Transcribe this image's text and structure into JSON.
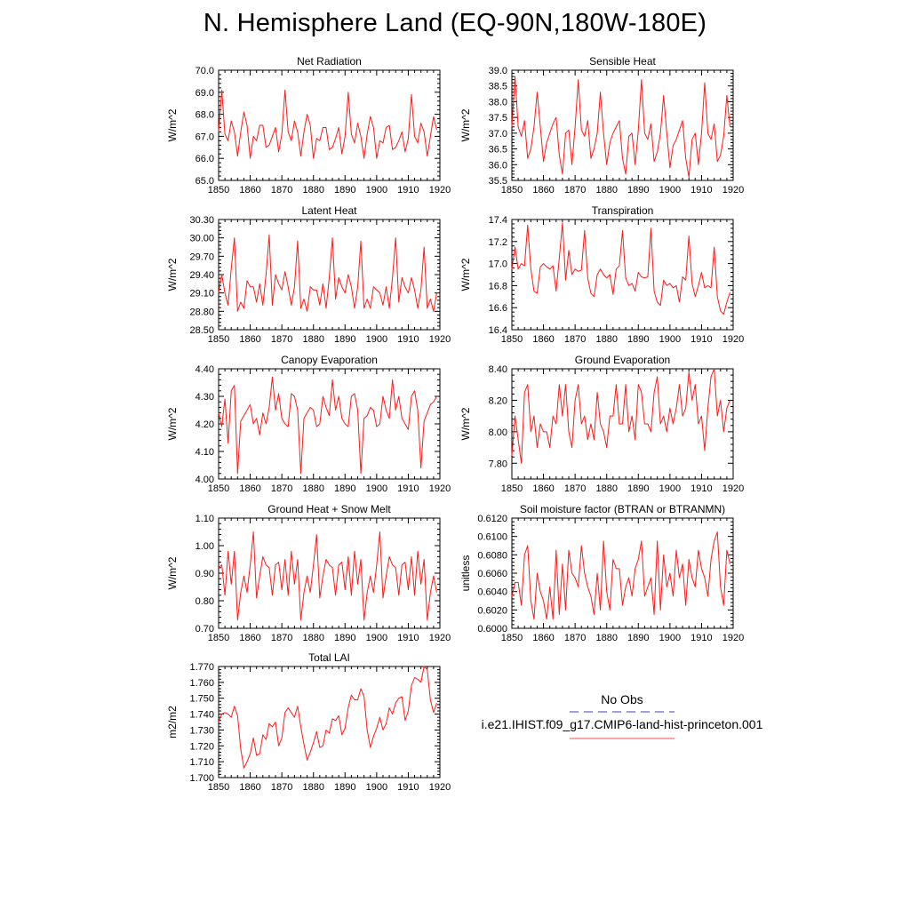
{
  "title": "N. Hemisphere Land (EQ-90N,180W-180E)",
  "legend": {
    "entries": [
      {
        "label": "No Obs",
        "color": "#3b3bc8",
        "style": "dashed"
      },
      {
        "label": "i.e21.IHIST.f09_g17.CMIP6-land-hist-princeton.001",
        "color": "#ff4a4a",
        "style": "solid"
      }
    ]
  },
  "chart_data": [
    {
      "type": "line",
      "title": "Net Radiation",
      "ylabel": "W/m^2",
      "xlabel": "",
      "xlim": [
        1850,
        1920
      ],
      "ylim": [
        65.0,
        70.0
      ],
      "xticks": [
        1850,
        1860,
        1870,
        1880,
        1890,
        1900,
        1910,
        1920
      ],
      "yticks": [
        65.0,
        66.0,
        67.0,
        68.0,
        69.0,
        70.0
      ],
      "ytick_labels": [
        "65.0",
        "66.0",
        "67.0",
        "68.0",
        "69.0",
        "70.0"
      ],
      "series": [
        {
          "x_start": 1850,
          "values": [
            67.2,
            69.1,
            67.1,
            66.8,
            67.7,
            67.2,
            66.1,
            67.2,
            68.1,
            67.5,
            66.0,
            67.0,
            66.8,
            67.5,
            67.5,
            66.5,
            66.6,
            67.0,
            67.4,
            66.3,
            67.1,
            69.1,
            67.2,
            66.8,
            67.7,
            67.2,
            66.1,
            67.2,
            68.0,
            67.5,
            66.0,
            66.9,
            66.8,
            67.4,
            67.4,
            66.4,
            66.5,
            66.9,
            67.4,
            66.2,
            67.0,
            69.0,
            67.1,
            66.7,
            67.6,
            67.0,
            66.0,
            67.1,
            67.9,
            67.4,
            66.0,
            66.8,
            66.7,
            67.4,
            67.5,
            66.4,
            66.5,
            66.8,
            67.2,
            66.3,
            66.9,
            68.9,
            67.0,
            66.7,
            67.6,
            67.2,
            66.1,
            67.0,
            67.9,
            67.3
          ]
        }
      ]
    },
    {
      "type": "line",
      "title": "Sensible Heat",
      "ylabel": "W/m^2",
      "xlabel": "",
      "xlim": [
        1850,
        1920
      ],
      "ylim": [
        35.5,
        39.0
      ],
      "xticks": [
        1850,
        1860,
        1870,
        1880,
        1890,
        1900,
        1910,
        1920
      ],
      "yticks": [
        35.5,
        36.0,
        36.5,
        37.0,
        37.5,
        38.0,
        38.5,
        39.0
      ],
      "ytick_labels": [
        "35.5",
        "36.0",
        "36.5",
        "37.0",
        "37.5",
        "38.0",
        "38.5",
        "39.0"
      ],
      "series": [
        {
          "x_start": 1850,
          "values": [
            37.2,
            38.8,
            37.2,
            36.9,
            37.4,
            36.2,
            36.5,
            37.2,
            38.3,
            37.2,
            36.1,
            36.7,
            37.0,
            37.3,
            37.5,
            36.3,
            35.7,
            37.0,
            37.1,
            36.0,
            37.2,
            38.7,
            37.1,
            36.9,
            37.4,
            36.2,
            36.5,
            37.0,
            38.3,
            37.0,
            36.0,
            36.7,
            37.0,
            37.2,
            37.4,
            36.2,
            35.7,
            36.9,
            37.0,
            36.0,
            37.1,
            38.7,
            37.0,
            36.8,
            37.3,
            36.1,
            36.4,
            37.0,
            38.2,
            37.0,
            35.9,
            36.6,
            36.8,
            37.1,
            37.4,
            36.2,
            35.6,
            36.8,
            37.0,
            36.0,
            37.0,
            38.6,
            37.0,
            36.8,
            37.3,
            36.1,
            36.3,
            36.9,
            38.2,
            37.2
          ]
        }
      ]
    },
    {
      "type": "line",
      "title": "Latent Heat",
      "ylabel": "W/m^2",
      "xlabel": "",
      "xlim": [
        1850,
        1920
      ],
      "ylim": [
        28.5,
        30.3
      ],
      "xticks": [
        1850,
        1860,
        1870,
        1880,
        1890,
        1900,
        1910,
        1920
      ],
      "yticks": [
        28.5,
        28.8,
        29.1,
        29.4,
        29.7,
        30.0,
        30.3
      ],
      "ytick_labels": [
        "28.50",
        "28.80",
        "29.10",
        "29.40",
        "29.70",
        "30.00",
        "30.30"
      ],
      "series": [
        {
          "x_start": 1850,
          "values": [
            29.1,
            29.4,
            29.1,
            28.9,
            29.5,
            30.0,
            28.8,
            28.95,
            28.85,
            29.3,
            29.2,
            29.2,
            28.95,
            29.25,
            28.9,
            29.4,
            30.05,
            28.9,
            29.4,
            29.25,
            29.15,
            29.45,
            29.2,
            28.9,
            29.2,
            29.95,
            28.85,
            29.0,
            28.8,
            29.2,
            29.15,
            29.15,
            28.9,
            29.25,
            28.85,
            29.35,
            30.0,
            29.0,
            29.35,
            29.2,
            29.1,
            29.4,
            29.2,
            28.85,
            29.2,
            29.95,
            28.85,
            29.0,
            28.85,
            29.2,
            29.15,
            29.1,
            28.9,
            29.2,
            28.85,
            29.35,
            30.0,
            28.95,
            29.35,
            29.2,
            29.1,
            29.35,
            29.15,
            28.85,
            29.15,
            29.85,
            28.85,
            29.0,
            28.8,
            29.1
          ]
        }
      ]
    },
    {
      "type": "line",
      "title": "Transpiration",
      "ylabel": "W/m^2",
      "xlabel": "",
      "xlim": [
        1850,
        1920
      ],
      "ylim": [
        16.4,
        17.4
      ],
      "xticks": [
        1850,
        1860,
        1870,
        1880,
        1890,
        1900,
        1910,
        1920
      ],
      "yticks": [
        16.4,
        16.6,
        16.8,
        17.0,
        17.2,
        17.4
      ],
      "ytick_labels": [
        "16.4",
        "16.6",
        "16.8",
        "17.0",
        "17.2",
        "17.4"
      ],
      "series": [
        {
          "x_start": 1850,
          "values": [
            16.95,
            17.15,
            16.95,
            17.0,
            16.98,
            17.35,
            16.95,
            16.75,
            16.73,
            16.97,
            17.0,
            16.97,
            16.95,
            16.98,
            16.75,
            17.05,
            17.37,
            16.85,
            17.12,
            16.9,
            16.95,
            16.93,
            16.94,
            17.3,
            16.87,
            16.73,
            16.7,
            16.9,
            16.95,
            16.9,
            16.87,
            16.9,
            16.72,
            16.95,
            16.98,
            17.3,
            16.87,
            16.8,
            16.82,
            16.75,
            16.92,
            16.88,
            16.87,
            16.88,
            17.32,
            16.75,
            16.65,
            16.62,
            16.85,
            16.8,
            16.82,
            16.78,
            16.8,
            16.65,
            16.88,
            16.85,
            17.25,
            16.82,
            16.7,
            16.8,
            16.92,
            16.78,
            16.8,
            16.78,
            17.15,
            16.7,
            16.57,
            16.54,
            16.65,
            16.74
          ]
        }
      ]
    },
    {
      "type": "line",
      "title": "Canopy Evaporation",
      "ylabel": "W/m^2",
      "xlabel": "",
      "xlim": [
        1850,
        1920
      ],
      "ylim": [
        4.0,
        4.4
      ],
      "xticks": [
        1850,
        1860,
        1870,
        1880,
        1890,
        1900,
        1910,
        1920
      ],
      "yticks": [
        4.0,
        4.1,
        4.2,
        4.3,
        4.4
      ],
      "ytick_labels": [
        "4.00",
        "4.10",
        "4.20",
        "4.30",
        "4.40"
      ],
      "series": [
        {
          "x_start": 1850,
          "values": [
            4.24,
            4.19,
            4.29,
            4.13,
            4.32,
            4.34,
            4.02,
            4.21,
            4.23,
            4.25,
            4.27,
            4.2,
            4.22,
            4.16,
            4.24,
            4.2,
            4.26,
            4.37,
            4.25,
            4.31,
            4.22,
            4.2,
            4.19,
            4.31,
            4.3,
            4.25,
            4.02,
            4.22,
            4.24,
            4.26,
            4.25,
            4.19,
            4.2,
            4.3,
            4.26,
            4.23,
            4.36,
            4.25,
            4.3,
            4.22,
            4.2,
            4.19,
            4.3,
            4.31,
            4.25,
            4.02,
            4.22,
            4.23,
            4.26,
            4.25,
            4.19,
            4.2,
            4.3,
            4.25,
            4.22,
            4.36,
            4.25,
            4.3,
            4.22,
            4.2,
            4.18,
            4.3,
            4.32,
            4.25,
            4.04,
            4.21,
            4.24,
            4.27,
            4.28,
            4.3
          ]
        }
      ]
    },
    {
      "type": "line",
      "title": "Ground Evaporation",
      "ylabel": "W/m^2",
      "xlabel": "",
      "xlim": [
        1850,
        1920
      ],
      "ylim": [
        7.7,
        8.4
      ],
      "xticks": [
        1850,
        1860,
        1870,
        1880,
        1890,
        1900,
        1910,
        1920
      ],
      "yticks": [
        7.8,
        8.0,
        8.2,
        8.4
      ],
      "ytick_labels": [
        "7.80",
        "8.00",
        "8.20",
        "8.40"
      ],
      "series": [
        {
          "x_start": 1850,
          "values": [
            7.85,
            8.1,
            7.95,
            7.8,
            8.25,
            8.3,
            8.0,
            8.1,
            7.9,
            8.05,
            8.0,
            8.0,
            7.9,
            8.1,
            8.05,
            8.3,
            8.1,
            8.3,
            8.0,
            7.9,
            8.2,
            8.3,
            8.05,
            8.1,
            7.95,
            8.05,
            7.95,
            8.25,
            8.05,
            8.0,
            7.9,
            8.1,
            8.1,
            8.3,
            8.05,
            8.05,
            8.3,
            8.0,
            8.1,
            7.95,
            8.3,
            8.25,
            8.05,
            8.05,
            8.0,
            8.25,
            8.35,
            8.05,
            8.1,
            8.0,
            8.15,
            8.05,
            8.15,
            8.3,
            8.1,
            8.15,
            8.38,
            8.2,
            8.3,
            8.05,
            8.1,
            7.88,
            8.15,
            8.35,
            8.4,
            8.1,
            8.2,
            8.0,
            8.15,
            8.2
          ]
        }
      ]
    },
    {
      "type": "line",
      "title": "Ground Heat + Snow Melt",
      "ylabel": "W/m^2",
      "xlabel": "",
      "xlim": [
        1850,
        1920
      ],
      "ylim": [
        0.7,
        1.1
      ],
      "xticks": [
        1850,
        1860,
        1870,
        1880,
        1890,
        1900,
        1910,
        1920
      ],
      "yticks": [
        0.7,
        0.8,
        0.9,
        1.0,
        1.1
      ],
      "ytick_labels": [
        "0.70",
        "0.80",
        "0.90",
        "1.00",
        "1.10"
      ],
      "series": [
        {
          "x_start": 1850,
          "values": [
            0.92,
            0.93,
            0.82,
            0.98,
            0.86,
            0.98,
            0.73,
            0.83,
            0.89,
            0.83,
            0.93,
            1.05,
            0.81,
            0.89,
            0.96,
            0.93,
            0.92,
            0.82,
            0.93,
            0.94,
            0.84,
            0.95,
            0.82,
            0.98,
            0.86,
            0.95,
            0.73,
            0.83,
            0.89,
            0.83,
            0.93,
            1.04,
            0.81,
            0.89,
            0.95,
            0.93,
            0.92,
            0.82,
            0.93,
            0.94,
            0.84,
            0.96,
            0.82,
            0.98,
            0.86,
            0.95,
            0.73,
            0.83,
            0.89,
            0.83,
            0.93,
            1.05,
            0.81,
            0.89,
            0.96,
            0.93,
            0.92,
            0.82,
            0.93,
            0.94,
            0.84,
            0.96,
            0.82,
            0.98,
            0.86,
            0.95,
            0.73,
            0.83,
            0.89,
            0.83
          ]
        }
      ]
    },
    {
      "type": "line",
      "title": "Soil moisture factor (BTRAN or BTRANMN)",
      "ylabel": "unitless",
      "xlabel": "",
      "xlim": [
        1850,
        1920
      ],
      "ylim": [
        0.6,
        0.612
      ],
      "xticks": [
        1850,
        1860,
        1870,
        1880,
        1890,
        1900,
        1910,
        1920
      ],
      "yticks": [
        0.6,
        0.602,
        0.604,
        0.606,
        0.608,
        0.61,
        0.612
      ],
      "ytick_labels": [
        "0.6000",
        "0.6020",
        "0.6040",
        "0.6060",
        "0.6080",
        "0.6100",
        "0.6120"
      ],
      "series": [
        {
          "x_start": 1850,
          "values": [
            0.6035,
            0.605,
            0.605,
            0.6025,
            0.608,
            0.609,
            0.603,
            0.601,
            0.606,
            0.604,
            0.603,
            0.601,
            0.6045,
            0.601,
            0.6085,
            0.6015,
            0.607,
            0.602,
            0.6085,
            0.606,
            0.6055,
            0.6045,
            0.609,
            0.606,
            0.6045,
            0.6035,
            0.6015,
            0.606,
            0.602,
            0.6095,
            0.604,
            0.602,
            0.6075,
            0.6065,
            0.6065,
            0.6025,
            0.6045,
            0.6055,
            0.6035,
            0.6065,
            0.6075,
            0.6095,
            0.6035,
            0.6045,
            0.6055,
            0.6015,
            0.6095,
            0.602,
            0.608,
            0.6045,
            0.606,
            0.6035,
            0.6085,
            0.6055,
            0.607,
            0.6025,
            0.6075,
            0.6055,
            0.6045,
            0.6085,
            0.6065,
            0.6055,
            0.6035,
            0.6075,
            0.6095,
            0.6105,
            0.6045,
            0.6025,
            0.6085,
            0.607
          ]
        }
      ]
    },
    {
      "type": "line",
      "title": "Total LAI",
      "ylabel": "m2/m2",
      "xlabel": "",
      "xlim": [
        1850,
        1920
      ],
      "ylim": [
        1.7,
        1.77
      ],
      "xticks": [
        1850,
        1860,
        1870,
        1880,
        1890,
        1900,
        1910,
        1920
      ],
      "yticks": [
        1.7,
        1.71,
        1.72,
        1.73,
        1.74,
        1.75,
        1.76,
        1.77
      ],
      "ytick_labels": [
        "1.700",
        "1.710",
        "1.720",
        "1.730",
        "1.740",
        "1.750",
        "1.760",
        "1.770"
      ],
      "series": [
        {
          "x_start": 1850,
          "values": [
            1.735,
            1.74,
            1.741,
            1.74,
            1.738,
            1.745,
            1.739,
            1.718,
            1.706,
            1.71,
            1.715,
            1.725,
            1.714,
            1.715,
            1.727,
            1.724,
            1.734,
            1.732,
            1.735,
            1.72,
            1.725,
            1.741,
            1.744,
            1.741,
            1.738,
            1.745,
            1.732,
            1.721,
            1.711,
            1.716,
            1.722,
            1.729,
            1.719,
            1.72,
            1.73,
            1.728,
            1.737,
            1.736,
            1.739,
            1.727,
            1.731,
            1.744,
            1.752,
            1.749,
            1.749,
            1.756,
            1.751,
            1.73,
            1.719,
            1.726,
            1.731,
            1.738,
            1.73,
            1.734,
            1.744,
            1.74,
            1.747,
            1.75,
            1.751,
            1.736,
            1.742,
            1.758,
            1.763,
            1.762,
            1.76,
            1.77,
            1.768,
            1.749,
            1.741,
            1.747
          ]
        }
      ]
    }
  ]
}
